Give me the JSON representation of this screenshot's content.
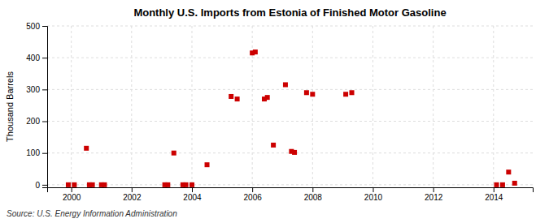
{
  "chart_data": {
    "type": "scatter",
    "title": "Monthly U.S. Imports from Estonia of Finished Motor Gasoline",
    "ylabel": "Thousand Barrels",
    "annotations": [
      "Source: U.S. Energy Information Administration"
    ],
    "x": [
      1999.9,
      2000.1,
      2000.5,
      2000.6,
      2000.7,
      2001.0,
      2001.1,
      2003.1,
      2003.2,
      2003.4,
      2003.7,
      2003.8,
      2004.0,
      2004.5,
      2005.3,
      2005.5,
      2006.0,
      2006.1,
      2006.4,
      2006.5,
      2006.7,
      2007.1,
      2007.3,
      2007.4,
      2007.8,
      2008.0,
      2009.1,
      2009.3,
      2014.1,
      2014.3,
      2014.5,
      2014.7
    ],
    "values": [
      0,
      0,
      115,
      0,
      0,
      0,
      0,
      0,
      0,
      100,
      0,
      0,
      0,
      63,
      278,
      270,
      415,
      418,
      270,
      275,
      125,
      315,
      105,
      102,
      290,
      285,
      285,
      290,
      0,
      0,
      40,
      5
    ],
    "color": "#cc0000",
    "marker": "square",
    "xlim": [
      1999.2,
      2015.3
    ],
    "xticks": [
      2000,
      2002,
      2004,
      2006,
      2008,
      2010,
      2012,
      2014
    ],
    "ylim": [
      -8,
      500
    ],
    "yticks": [
      0,
      100,
      200,
      300,
      400,
      500
    ],
    "grid": true
  }
}
